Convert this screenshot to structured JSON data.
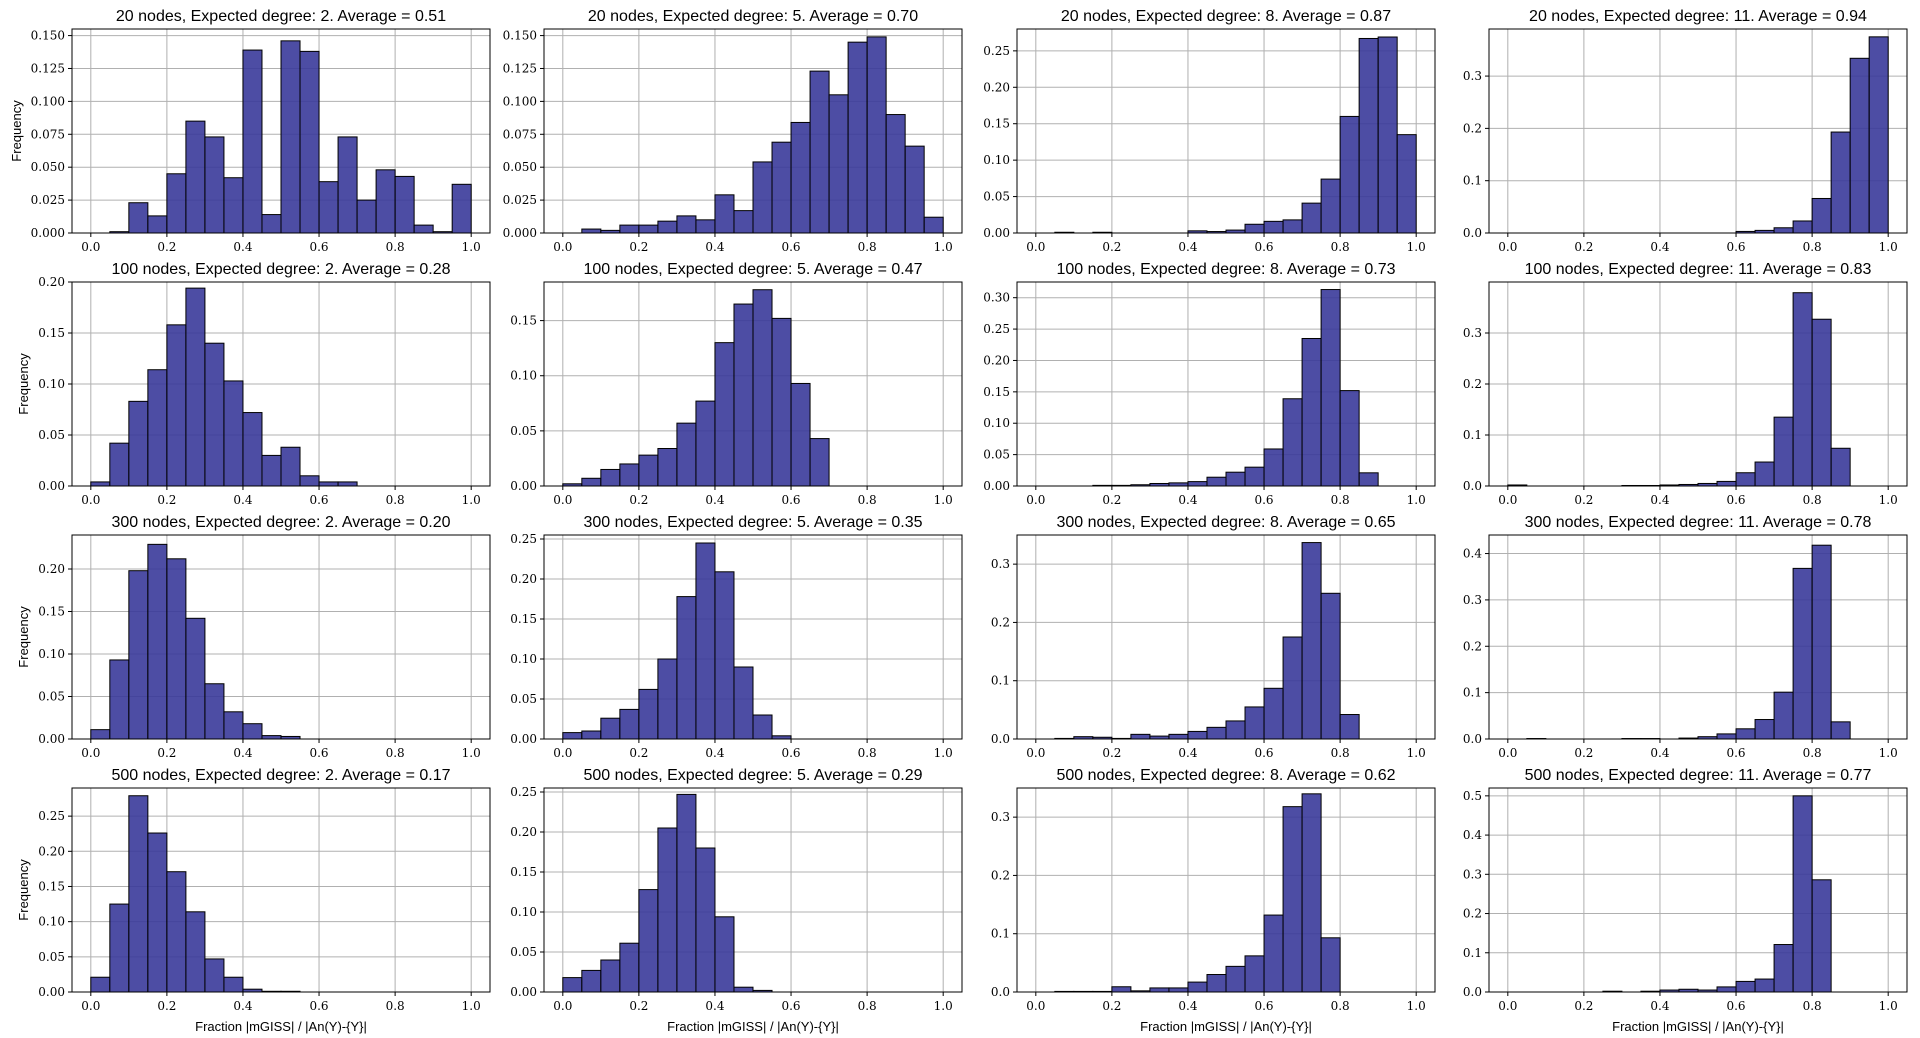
{
  "chart_data": [
    {
      "type": "bar",
      "title": "20 nodes, Expected degree: 2. Average = 0.51",
      "xlabel": "",
      "ylabel": "Frequency",
      "xlim": [
        0,
        1
      ],
      "ylim": [
        0,
        0.155
      ],
      "yticks": [
        "0.000",
        "0.025",
        "0.050",
        "0.075",
        "0.100",
        "0.125",
        "0.150"
      ],
      "ytick_values": [
        0,
        0.025,
        0.05,
        0.075,
        0.1,
        0.125,
        0.15
      ],
      "xticks": [
        "0.0",
        "0.2",
        "0.4",
        "0.6",
        "0.8",
        "1.0"
      ],
      "xtick_values": [
        0,
        0.2,
        0.4,
        0.6,
        0.8,
        1.0
      ],
      "bin_start": 0,
      "bin_width": 0.05,
      "values": [
        0,
        0.001,
        0.023,
        0.013,
        0.045,
        0.085,
        0.073,
        0.042,
        0.139,
        0.014,
        0.146,
        0.138,
        0.039,
        0.073,
        0.025,
        0.048,
        0.043,
        0.006,
        0.001,
        0.037
      ]
    },
    {
      "type": "bar",
      "title": "20 nodes, Expected degree: 5. Average = 0.70",
      "xlabel": "",
      "ylabel": "",
      "xlim": [
        0,
        1
      ],
      "ylim": [
        0,
        0.155
      ],
      "yticks": [
        "0.000",
        "0.025",
        "0.050",
        "0.075",
        "0.100",
        "0.125",
        "0.150"
      ],
      "ytick_values": [
        0,
        0.025,
        0.05,
        0.075,
        0.1,
        0.125,
        0.15
      ],
      "xticks": [
        "0.0",
        "0.2",
        "0.4",
        "0.6",
        "0.8",
        "1.0"
      ],
      "xtick_values": [
        0,
        0.2,
        0.4,
        0.6,
        0.8,
        1.0
      ],
      "bin_start": 0,
      "bin_width": 0.05,
      "values": [
        0,
        0.003,
        0.002,
        0.006,
        0.006,
        0.009,
        0.013,
        0.01,
        0.029,
        0.017,
        0.054,
        0.069,
        0.084,
        0.123,
        0.105,
        0.145,
        0.149,
        0.09,
        0.066,
        0.012
      ]
    },
    {
      "type": "bar",
      "title": "20 nodes, Expected degree: 8. Average = 0.87",
      "xlabel": "",
      "ylabel": "",
      "xlim": [
        0,
        1
      ],
      "ylim": [
        0,
        0.28
      ],
      "yticks": [
        "0.00",
        "0.05",
        "0.10",
        "0.15",
        "0.20",
        "0.25"
      ],
      "ytick_values": [
        0,
        0.05,
        0.1,
        0.15,
        0.2,
        0.25
      ],
      "xticks": [
        "0.0",
        "0.2",
        "0.4",
        "0.6",
        "0.8",
        "1.0"
      ],
      "xtick_values": [
        0,
        0.2,
        0.4,
        0.6,
        0.8,
        1.0
      ],
      "bin_start": 0,
      "bin_width": 0.05,
      "values": [
        0,
        0.001,
        0,
        0.001,
        0,
        0,
        0,
        0,
        0.003,
        0.002,
        0.004,
        0.012,
        0.016,
        0.018,
        0.041,
        0.074,
        0.16,
        0.267,
        0.269,
        0.135
      ]
    },
    {
      "type": "bar",
      "title": "20 nodes, Expected degree: 11. Average = 0.94",
      "xlabel": "",
      "ylabel": "",
      "xlim": [
        0,
        1
      ],
      "ylim": [
        0,
        0.39
      ],
      "yticks": [
        "0.0",
        "0.1",
        "0.2",
        "0.3"
      ],
      "ytick_values": [
        0,
        0.1,
        0.2,
        0.3
      ],
      "xticks": [
        "0.0",
        "0.2",
        "0.4",
        "0.6",
        "0.8",
        "1.0"
      ],
      "xtick_values": [
        0,
        0.2,
        0.4,
        0.6,
        0.8,
        1.0
      ],
      "bin_start": 0,
      "bin_width": 0.05,
      "values": [
        0,
        0,
        0,
        0,
        0,
        0,
        0,
        0,
        0,
        0,
        0,
        0,
        0.003,
        0.005,
        0.01,
        0.023,
        0.066,
        0.193,
        0.334,
        0.375
      ]
    },
    {
      "type": "bar",
      "title": "100 nodes, Expected degree: 2. Average = 0.28",
      "xlabel": "",
      "ylabel": "Frequency",
      "xlim": [
        0,
        1
      ],
      "ylim": [
        0,
        0.2
      ],
      "yticks": [
        "0.00",
        "0.05",
        "0.10",
        "0.15",
        "0.20"
      ],
      "ytick_values": [
        0,
        0.05,
        0.1,
        0.15,
        0.2
      ],
      "xticks": [
        "0.0",
        "0.2",
        "0.4",
        "0.6",
        "0.8",
        "1.0"
      ],
      "xtick_values": [
        0,
        0.2,
        0.4,
        0.6,
        0.8,
        1.0
      ],
      "bin_start": 0,
      "bin_width": 0.05,
      "values": [
        0.004,
        0.042,
        0.083,
        0.114,
        0.158,
        0.194,
        0.14,
        0.103,
        0.072,
        0.03,
        0.038,
        0.01,
        0.004,
        0.004,
        0,
        0,
        0,
        0,
        0,
        0
      ]
    },
    {
      "type": "bar",
      "title": "100 nodes, Expected degree: 5. Average = 0.47",
      "xlabel": "",
      "ylabel": "",
      "xlim": [
        0,
        1
      ],
      "ylim": [
        0,
        0.185
      ],
      "yticks": [
        "0.00",
        "0.05",
        "0.10",
        "0.15"
      ],
      "ytick_values": [
        0,
        0.05,
        0.1,
        0.15
      ],
      "xticks": [
        "0.0",
        "0.2",
        "0.4",
        "0.6",
        "0.8",
        "1.0"
      ],
      "xtick_values": [
        0,
        0.2,
        0.4,
        0.6,
        0.8,
        1.0
      ],
      "bin_start": 0,
      "bin_width": 0.05,
      "values": [
        0.002,
        0.007,
        0.015,
        0.02,
        0.028,
        0.034,
        0.057,
        0.077,
        0.13,
        0.165,
        0.178,
        0.152,
        0.093,
        0.043,
        0,
        0,
        0,
        0,
        0,
        0
      ]
    },
    {
      "type": "bar",
      "title": "100 nodes, Expected degree: 8. Average = 0.73",
      "xlabel": "",
      "ylabel": "",
      "xlim": [
        0,
        1
      ],
      "ylim": [
        0,
        0.325
      ],
      "yticks": [
        "0.00",
        "0.05",
        "0.10",
        "0.15",
        "0.20",
        "0.25",
        "0.30"
      ],
      "ytick_values": [
        0,
        0.05,
        0.1,
        0.15,
        0.2,
        0.25,
        0.3
      ],
      "xticks": [
        "0.0",
        "0.2",
        "0.4",
        "0.6",
        "0.8",
        "1.0"
      ],
      "xtick_values": [
        0,
        0.2,
        0.4,
        0.6,
        0.8,
        1.0
      ],
      "bin_start": 0,
      "bin_width": 0.05,
      "values": [
        0,
        0,
        0,
        0.001,
        0.001,
        0.002,
        0.004,
        0.005,
        0.007,
        0.014,
        0.022,
        0.03,
        0.059,
        0.139,
        0.235,
        0.313,
        0.152,
        0.021,
        0,
        0
      ]
    },
    {
      "type": "bar",
      "title": "100 nodes, Expected degree: 11. Average = 0.83",
      "xlabel": "",
      "ylabel": "",
      "xlim": [
        0,
        1
      ],
      "ylim": [
        0,
        0.4
      ],
      "yticks": [
        "0.0",
        "0.1",
        "0.2",
        "0.3"
      ],
      "ytick_values": [
        0,
        0.1,
        0.2,
        0.3
      ],
      "xticks": [
        "0.0",
        "0.2",
        "0.4",
        "0.6",
        "0.8",
        "1.0"
      ],
      "xtick_values": [
        0,
        0.2,
        0.4,
        0.6,
        0.8,
        1.0
      ],
      "bin_start": 0,
      "bin_width": 0.05,
      "values": [
        0.002,
        0,
        0,
        0,
        0,
        0,
        0.001,
        0.001,
        0.002,
        0.003,
        0.005,
        0.009,
        0.026,
        0.047,
        0.135,
        0.379,
        0.327,
        0.074,
        0,
        0
      ]
    },
    {
      "type": "bar",
      "title": "300 nodes, Expected degree: 2. Average = 0.20",
      "xlabel": "",
      "ylabel": "Frequency",
      "xlim": [
        0,
        1
      ],
      "ylim": [
        0,
        0.24
      ],
      "yticks": [
        "0.00",
        "0.05",
        "0.10",
        "0.15",
        "0.20"
      ],
      "ytick_values": [
        0,
        0.05,
        0.1,
        0.15,
        0.2
      ],
      "xticks": [
        "0.0",
        "0.2",
        "0.4",
        "0.6",
        "0.8",
        "1.0"
      ],
      "xtick_values": [
        0,
        0.2,
        0.4,
        0.6,
        0.8,
        1.0
      ],
      "bin_start": 0,
      "bin_width": 0.05,
      "values": [
        0.011,
        0.093,
        0.198,
        0.229,
        0.212,
        0.142,
        0.065,
        0.032,
        0.018,
        0.004,
        0.003,
        0,
        0,
        0,
        0,
        0,
        0,
        0,
        0,
        0
      ]
    },
    {
      "type": "bar",
      "title": "300 nodes, Expected degree: 5. Average = 0.35",
      "xlabel": "",
      "ylabel": "",
      "xlim": [
        0,
        1
      ],
      "ylim": [
        0,
        0.255
      ],
      "yticks": [
        "0.00",
        "0.05",
        "0.10",
        "0.15",
        "0.20",
        "0.25"
      ],
      "ytick_values": [
        0,
        0.05,
        0.1,
        0.15,
        0.2,
        0.25
      ],
      "xticks": [
        "0.0",
        "0.2",
        "0.4",
        "0.6",
        "0.8",
        "1.0"
      ],
      "xtick_values": [
        0,
        0.2,
        0.4,
        0.6,
        0.8,
        1.0
      ],
      "bin_start": 0,
      "bin_width": 0.05,
      "values": [
        0.008,
        0.01,
        0.026,
        0.037,
        0.062,
        0.1,
        0.178,
        0.245,
        0.209,
        0.09,
        0.03,
        0.004,
        0,
        0,
        0,
        0,
        0,
        0,
        0,
        0
      ]
    },
    {
      "type": "bar",
      "title": "300 nodes, Expected degree: 8. Average = 0.65",
      "xlabel": "",
      "ylabel": "",
      "xlim": [
        0,
        1
      ],
      "ylim": [
        0,
        0.35
      ],
      "yticks": [
        "0.0",
        "0.1",
        "0.2",
        "0.3"
      ],
      "ytick_values": [
        0,
        0.1,
        0.2,
        0.3
      ],
      "xticks": [
        "0.0",
        "0.2",
        "0.4",
        "0.6",
        "0.8",
        "1.0"
      ],
      "xtick_values": [
        0,
        0.2,
        0.4,
        0.6,
        0.8,
        1.0
      ],
      "bin_start": 0,
      "bin_width": 0.05,
      "values": [
        0,
        0.001,
        0.004,
        0.003,
        0.001,
        0.008,
        0.005,
        0.008,
        0.013,
        0.02,
        0.031,
        0.055,
        0.087,
        0.175,
        0.337,
        0.25,
        0.042,
        0,
        0,
        0
      ]
    },
    {
      "type": "bar",
      "title": "300 nodes, Expected degree: 11. Average = 0.78",
      "xlabel": "",
      "ylabel": "",
      "xlim": [
        0,
        1
      ],
      "ylim": [
        0,
        0.44
      ],
      "yticks": [
        "0.0",
        "0.1",
        "0.2",
        "0.3",
        "0.4"
      ],
      "ytick_values": [
        0,
        0.1,
        0.2,
        0.3,
        0.4
      ],
      "xticks": [
        "0.0",
        "0.2",
        "0.4",
        "0.6",
        "0.8",
        "1.0"
      ],
      "xtick_values": [
        0,
        0.2,
        0.4,
        0.6,
        0.8,
        1.0
      ],
      "bin_start": 0,
      "bin_width": 0.05,
      "values": [
        0,
        0.001,
        0,
        0,
        0,
        0,
        0.001,
        0.001,
        0,
        0.002,
        0.005,
        0.011,
        0.022,
        0.042,
        0.101,
        0.368,
        0.418,
        0.037,
        0,
        0
      ]
    },
    {
      "type": "bar",
      "title": "500 nodes, Expected degree: 2. Average = 0.17",
      "xlabel": "Fraction |mGISS| / |An(Y)-{Y}|",
      "ylabel": "Frequency",
      "xlim": [
        0,
        1
      ],
      "ylim": [
        0,
        0.29
      ],
      "yticks": [
        "0.00",
        "0.05",
        "0.10",
        "0.15",
        "0.20",
        "0.25"
      ],
      "ytick_values": [
        0,
        0.05,
        0.1,
        0.15,
        0.2,
        0.25
      ],
      "xticks": [
        "0.0",
        "0.2",
        "0.4",
        "0.6",
        "0.8",
        "1.0"
      ],
      "xtick_values": [
        0,
        0.2,
        0.4,
        0.6,
        0.8,
        1.0
      ],
      "bin_start": 0,
      "bin_width": 0.05,
      "values": [
        0.021,
        0.125,
        0.279,
        0.226,
        0.171,
        0.114,
        0.047,
        0.021,
        0.004,
        0.001,
        0.001,
        0,
        0,
        0,
        0,
        0,
        0,
        0,
        0,
        0
      ]
    },
    {
      "type": "bar",
      "title": "500 nodes, Expected degree: 5. Average = 0.29",
      "xlabel": "Fraction |mGISS| / |An(Y)-{Y}|",
      "ylabel": "",
      "xlim": [
        0,
        1
      ],
      "ylim": [
        0,
        0.255
      ],
      "yticks": [
        "0.00",
        "0.05",
        "0.10",
        "0.15",
        "0.20",
        "0.25"
      ],
      "ytick_values": [
        0,
        0.05,
        0.1,
        0.15,
        0.2,
        0.25
      ],
      "xticks": [
        "0.0",
        "0.2",
        "0.4",
        "0.6",
        "0.8",
        "1.0"
      ],
      "xtick_values": [
        0,
        0.2,
        0.4,
        0.6,
        0.8,
        1.0
      ],
      "bin_start": 0,
      "bin_width": 0.05,
      "values": [
        0.018,
        0.027,
        0.04,
        0.061,
        0.128,
        0.205,
        0.247,
        0.18,
        0.094,
        0.006,
        0.002,
        0,
        0,
        0,
        0,
        0,
        0,
        0,
        0,
        0
      ]
    },
    {
      "type": "bar",
      "title": "500 nodes, Expected degree: 8. Average = 0.62",
      "xlabel": "Fraction |mGISS| / |An(Y)-{Y}|",
      "ylabel": "",
      "xlim": [
        0,
        1
      ],
      "ylim": [
        0,
        0.35
      ],
      "yticks": [
        "0.0",
        "0.1",
        "0.2",
        "0.3"
      ],
      "ytick_values": [
        0,
        0.1,
        0.2,
        0.3
      ],
      "xticks": [
        "0.0",
        "0.2",
        "0.4",
        "0.6",
        "0.8",
        "1.0"
      ],
      "xtick_values": [
        0,
        0.2,
        0.4,
        0.6,
        0.8,
        1.0
      ],
      "bin_start": 0,
      "bin_width": 0.05,
      "values": [
        0,
        0.001,
        0.001,
        0.001,
        0.009,
        0.002,
        0.007,
        0.007,
        0.017,
        0.03,
        0.044,
        0.062,
        0.132,
        0.318,
        0.34,
        0.093,
        0,
        0,
        0,
        0
      ]
    },
    {
      "type": "bar",
      "title": "500 nodes, Expected degree: 11. Average = 0.77",
      "xlabel": "Fraction |mGISS| / |An(Y)-{Y}|",
      "ylabel": "",
      "xlim": [
        0,
        1
      ],
      "ylim": [
        0,
        0.52
      ],
      "yticks": [
        "0.0",
        "0.1",
        "0.2",
        "0.3",
        "0.4",
        "0.5"
      ],
      "ytick_values": [
        0,
        0.1,
        0.2,
        0.3,
        0.4,
        0.5
      ],
      "xticks": [
        "0.0",
        "0.2",
        "0.4",
        "0.6",
        "0.8",
        "1.0"
      ],
      "xtick_values": [
        0,
        0.2,
        0.4,
        0.6,
        0.8,
        1.0
      ],
      "bin_start": 0,
      "bin_width": 0.05,
      "values": [
        0,
        0,
        0,
        0,
        0,
        0.002,
        0,
        0.002,
        0.005,
        0.007,
        0.005,
        0.013,
        0.027,
        0.033,
        0.121,
        0.5,
        0.286,
        0,
        0,
        0
      ]
    }
  ]
}
